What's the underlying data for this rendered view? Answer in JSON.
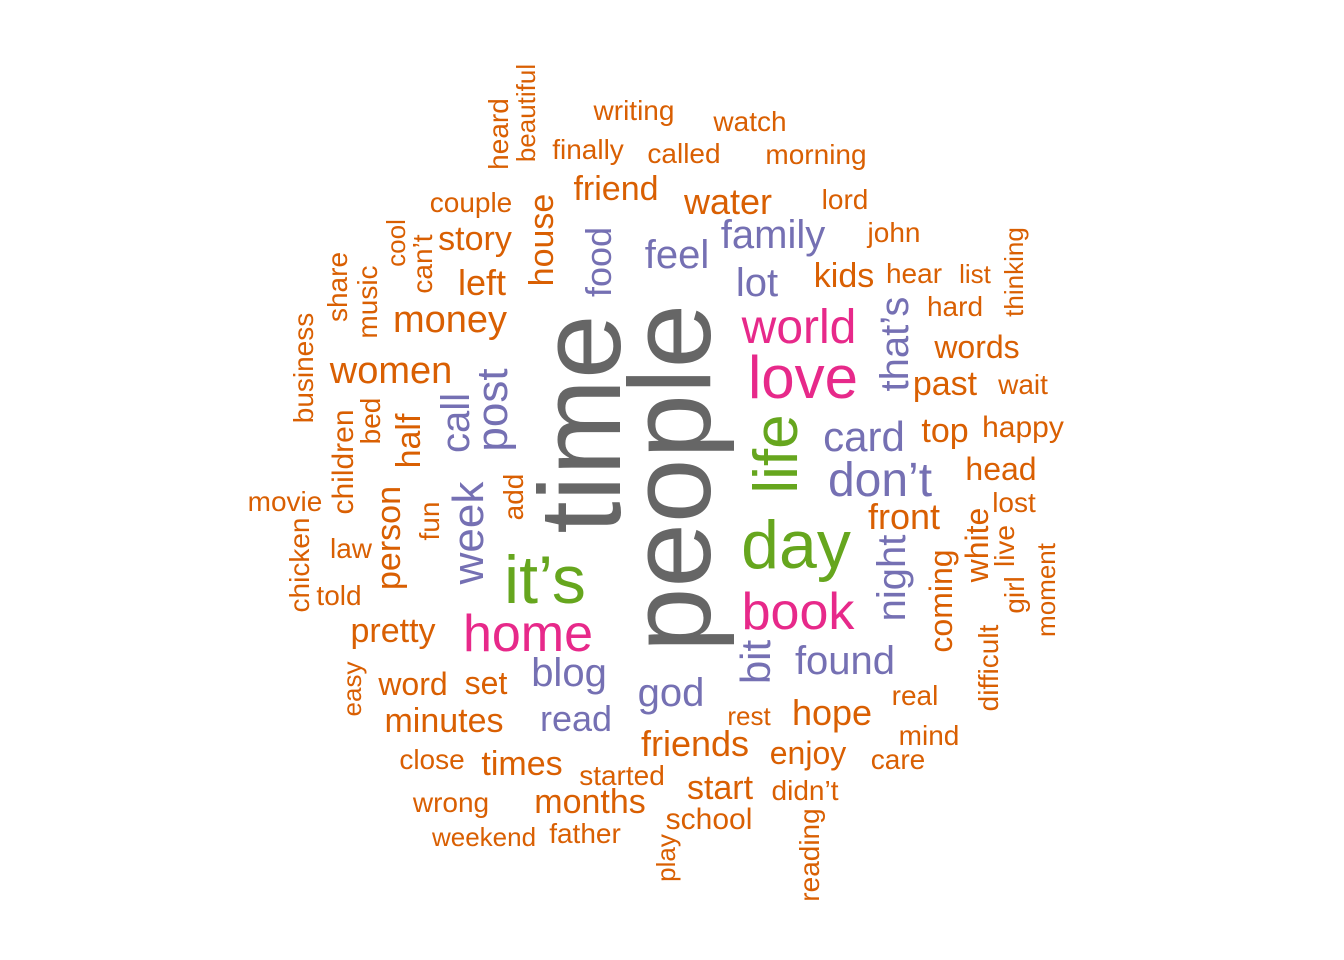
{
  "colors": {
    "gray": "#666666",
    "green": "#66a61e",
    "pink": "#e7298a",
    "purple": "#7570b3",
    "orange": "#d95f02"
  },
  "words": [
    {
      "text": "people",
      "color": "gray"
    },
    {
      "text": "time",
      "color": "gray"
    },
    {
      "text": "it’s",
      "color": "green"
    },
    {
      "text": "day",
      "color": "green"
    },
    {
      "text": "life",
      "color": "green"
    },
    {
      "text": "love",
      "color": "pink"
    },
    {
      "text": "world",
      "color": "pink"
    },
    {
      "text": "book",
      "color": "pink"
    },
    {
      "text": "home",
      "color": "pink"
    },
    {
      "text": "don’t",
      "color": "purple"
    },
    {
      "text": "card",
      "color": "purple"
    },
    {
      "text": "family",
      "color": "purple"
    },
    {
      "text": "feel",
      "color": "purple"
    },
    {
      "text": "lot",
      "color": "purple"
    },
    {
      "text": "blog",
      "color": "purple"
    },
    {
      "text": "god",
      "color": "purple"
    },
    {
      "text": "found",
      "color": "purple"
    },
    {
      "text": "read",
      "color": "purple"
    },
    {
      "text": "post",
      "color": "purple"
    },
    {
      "text": "week",
      "color": "purple"
    },
    {
      "text": "call",
      "color": "purple"
    },
    {
      "text": "food",
      "color": "purple"
    },
    {
      "text": "bit",
      "color": "purple"
    },
    {
      "text": "night",
      "color": "purple"
    },
    {
      "text": "that’s",
      "color": "purple"
    },
    {
      "text": "writing",
      "color": "orange"
    },
    {
      "text": "watch",
      "color": "orange"
    },
    {
      "text": "finally",
      "color": "orange"
    },
    {
      "text": "called",
      "color": "orange"
    },
    {
      "text": "morning",
      "color": "orange"
    },
    {
      "text": "friend",
      "color": "orange"
    },
    {
      "text": "couple",
      "color": "orange"
    },
    {
      "text": "water",
      "color": "orange"
    },
    {
      "text": "lord",
      "color": "orange"
    },
    {
      "text": "story",
      "color": "orange"
    },
    {
      "text": "john",
      "color": "orange"
    },
    {
      "text": "left",
      "color": "orange"
    },
    {
      "text": "kids",
      "color": "orange"
    },
    {
      "text": "hear",
      "color": "orange"
    },
    {
      "text": "list",
      "color": "orange"
    },
    {
      "text": "money",
      "color": "orange"
    },
    {
      "text": "hard",
      "color": "orange"
    },
    {
      "text": "words",
      "color": "orange"
    },
    {
      "text": "women",
      "color": "orange"
    },
    {
      "text": "past",
      "color": "orange"
    },
    {
      "text": "wait",
      "color": "orange"
    },
    {
      "text": "top",
      "color": "orange"
    },
    {
      "text": "happy",
      "color": "orange"
    },
    {
      "text": "head",
      "color": "orange"
    },
    {
      "text": "movie",
      "color": "orange"
    },
    {
      "text": "lost",
      "color": "orange"
    },
    {
      "text": "front",
      "color": "orange"
    },
    {
      "text": "law",
      "color": "orange"
    },
    {
      "text": "told",
      "color": "orange"
    },
    {
      "text": "pretty",
      "color": "orange"
    },
    {
      "text": "word",
      "color": "orange"
    },
    {
      "text": "set",
      "color": "orange"
    },
    {
      "text": "minutes",
      "color": "orange"
    },
    {
      "text": "real",
      "color": "orange"
    },
    {
      "text": "rest",
      "color": "orange"
    },
    {
      "text": "hope",
      "color": "orange"
    },
    {
      "text": "mind",
      "color": "orange"
    },
    {
      "text": "friends",
      "color": "orange"
    },
    {
      "text": "close",
      "color": "orange"
    },
    {
      "text": "times",
      "color": "orange"
    },
    {
      "text": "enjoy",
      "color": "orange"
    },
    {
      "text": "care",
      "color": "orange"
    },
    {
      "text": "started",
      "color": "orange"
    },
    {
      "text": "start",
      "color": "orange"
    },
    {
      "text": "didn’t",
      "color": "orange"
    },
    {
      "text": "wrong",
      "color": "orange"
    },
    {
      "text": "months",
      "color": "orange"
    },
    {
      "text": "school",
      "color": "orange"
    },
    {
      "text": "weekend",
      "color": "orange"
    },
    {
      "text": "father",
      "color": "orange"
    },
    {
      "text": "heard",
      "color": "orange"
    },
    {
      "text": "beautiful",
      "color": "orange"
    },
    {
      "text": "house",
      "color": "orange"
    },
    {
      "text": "cool",
      "color": "orange"
    },
    {
      "text": "can’t",
      "color": "orange"
    },
    {
      "text": "share",
      "color": "orange"
    },
    {
      "text": "music",
      "color": "orange"
    },
    {
      "text": "business",
      "color": "orange"
    },
    {
      "text": "bed",
      "color": "orange"
    },
    {
      "text": "children",
      "color": "orange"
    },
    {
      "text": "half",
      "color": "orange"
    },
    {
      "text": "chicken",
      "color": "orange"
    },
    {
      "text": "person",
      "color": "orange"
    },
    {
      "text": "fun",
      "color": "orange"
    },
    {
      "text": "add",
      "color": "orange"
    },
    {
      "text": "easy",
      "color": "orange"
    },
    {
      "text": "thinking",
      "color": "orange"
    },
    {
      "text": "white",
      "color": "orange"
    },
    {
      "text": "live",
      "color": "orange"
    },
    {
      "text": "girl",
      "color": "orange"
    },
    {
      "text": "moment",
      "color": "orange"
    },
    {
      "text": "coming",
      "color": "orange"
    },
    {
      "text": "difficult",
      "color": "orange"
    },
    {
      "text": "play",
      "color": "orange"
    },
    {
      "text": "reading",
      "color": "orange"
    }
  ]
}
